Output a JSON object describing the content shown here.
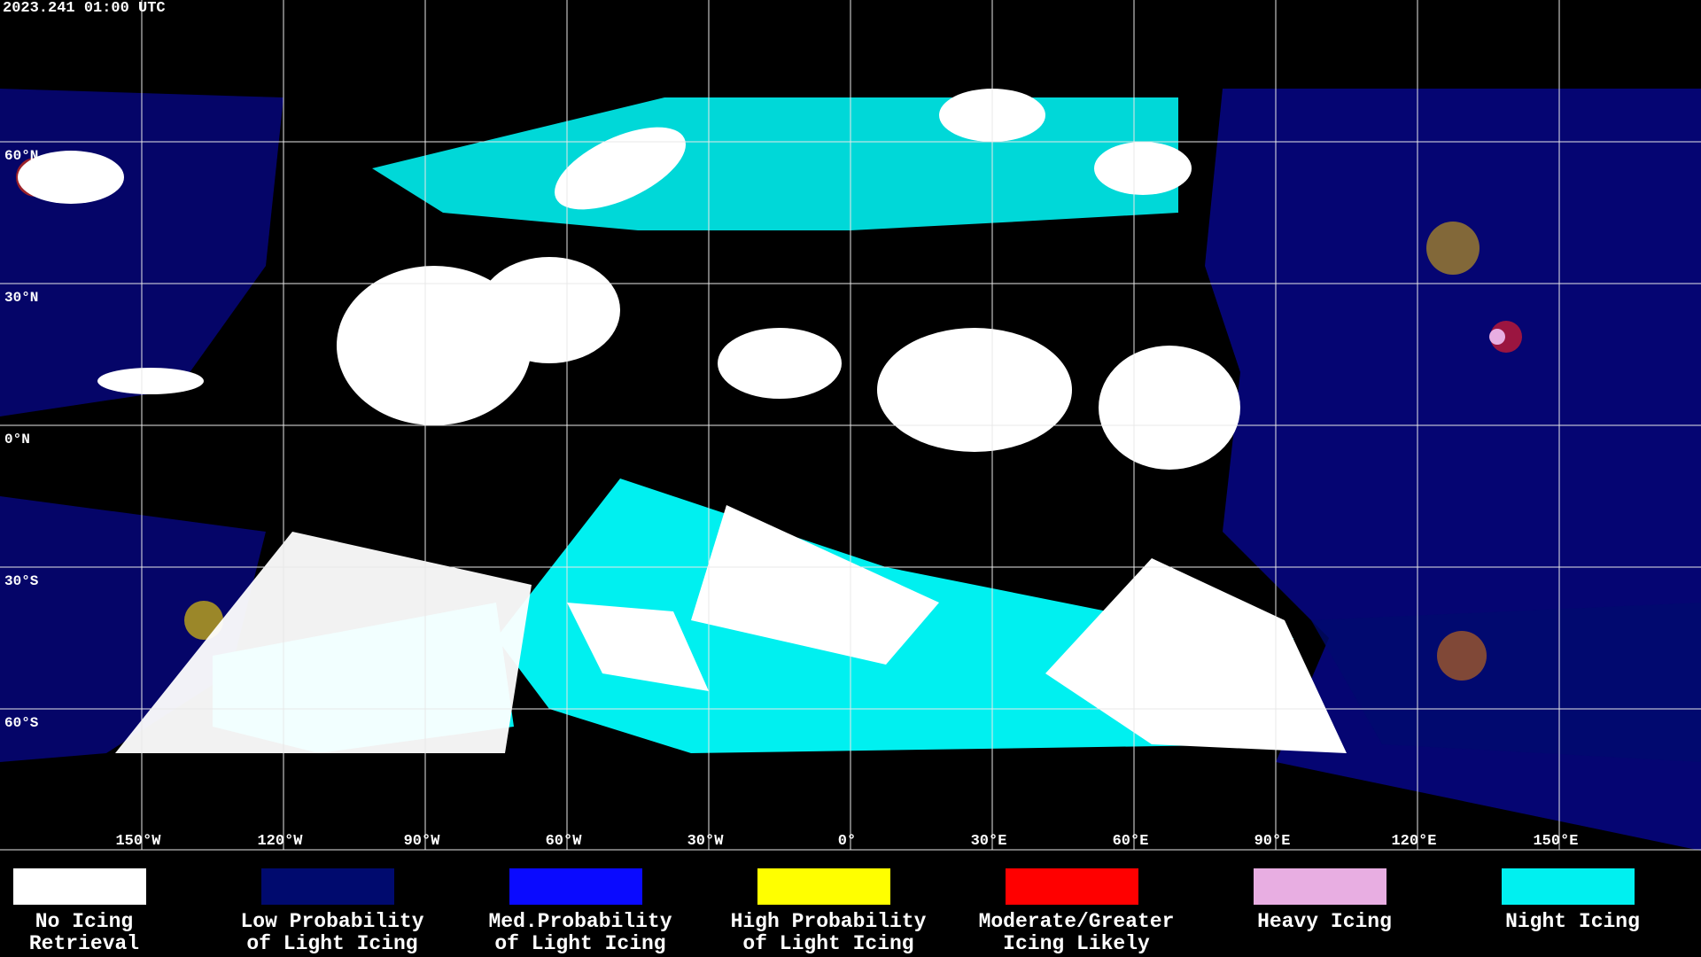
{
  "header": {
    "timestamp": "2023.241 01:00 UTC"
  },
  "map": {
    "lat_labels": [
      "60°N",
      "30°N",
      "0°N",
      "30°S",
      "60°S"
    ],
    "lon_labels": [
      "150°W",
      "120°W",
      "90°W",
      "60°W",
      "30°W",
      "0°",
      "30°E",
      "60°E",
      "90°E",
      "120°E",
      "150°E"
    ]
  },
  "legend": [
    {
      "lines": [
        "No Icing",
        "Retrieval"
      ],
      "color": "#ffffff"
    },
    {
      "lines": [
        "Low Probability",
        "of Light Icing"
      ],
      "color": "#000a6e"
    },
    {
      "lines": [
        "Med.Probability",
        "of Light Icing"
      ],
      "color": "#0a0aff"
    },
    {
      "lines": [
        "High Probability",
        "of Light Icing"
      ],
      "color": "#ffff00"
    },
    {
      "lines": [
        "Moderate/Greater",
        "Icing Likely"
      ],
      "color": "#ff0000"
    },
    {
      "lines": [
        "Heavy Icing"
      ],
      "color": "#e8aee2"
    },
    {
      "lines": [
        "Night Icing"
      ],
      "color": "#00f0f0"
    }
  ]
}
